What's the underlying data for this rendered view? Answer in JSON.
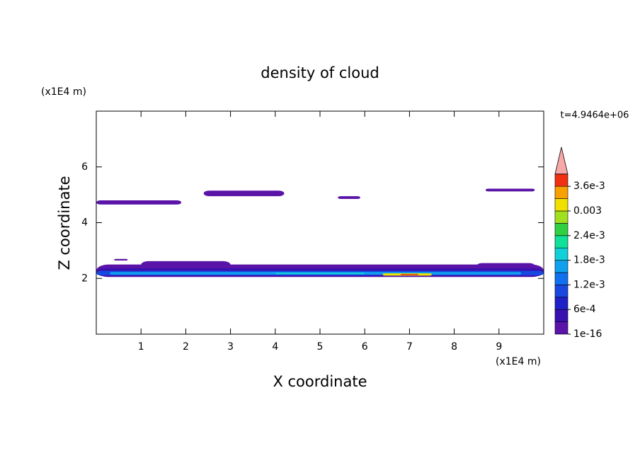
{
  "chart_data": {
    "type": "contour",
    "title": "density of cloud",
    "x_label": "X coordinate",
    "y_label": "Z coordinate",
    "x_unit": "(x1E4 m)",
    "y_unit": "(x1E4 m)",
    "time_label": "t=4.9464e+06",
    "xlim": [
      0,
      10
    ],
    "ylim": [
      0,
      8
    ],
    "xticks": [
      1,
      2,
      3,
      4,
      5,
      6,
      7,
      8,
      9
    ],
    "yticks": [
      2,
      4,
      6
    ],
    "clim": [
      0,
      0.0039
    ],
    "colors": [
      "#5a14a8",
      "#3a10b0",
      "#2020c8",
      "#1848e0",
      "#1070f0",
      "#10a0f0",
      "#10d0d8",
      "#10e098",
      "#30d040",
      "#a0e020",
      "#f0e000",
      "#f8a000",
      "#f03010"
    ],
    "over_color": "#f8a8a8",
    "cticks": [
      {
        "value": 1e-16,
        "label": "1e-16"
      },
      {
        "value": 0.0006,
        "label": "6e-4"
      },
      {
        "value": 0.0012,
        "label": "1.2e-3"
      },
      {
        "value": 0.0018,
        "label": "1.8e-3"
      },
      {
        "value": 0.0024,
        "label": "2.4e-3"
      },
      0.003,
      {
        "value": 0.0036,
        "label": "3.6e-3"
      }
    ],
    "patches": [
      {
        "x": [
          0,
          1.9
        ],
        "z": [
          4.65,
          4.8
        ],
        "value": 0.0001
      },
      {
        "x": [
          2.4,
          4.2
        ],
        "z": [
          4.95,
          5.15
        ],
        "value": 0.0001
      },
      {
        "x": [
          5.4,
          5.9
        ],
        "z": [
          4.85,
          4.95
        ],
        "value": 0.0001
      },
      {
        "x": [
          8.7,
          9.8
        ],
        "z": [
          5.12,
          5.22
        ],
        "value": 0.0001
      },
      {
        "x": [
          0.4,
          0.7
        ],
        "z": [
          2.64,
          2.7
        ],
        "value": 0.0001
      },
      {
        "x": [
          1,
          3
        ],
        "z": [
          2.35,
          2.62
        ],
        "value": 0.0001
      },
      {
        "x": [
          8.5,
          9.8
        ],
        "z": [
          2.35,
          2.55
        ],
        "value": 0.0001
      },
      {
        "x": [
          0,
          10
        ],
        "z": [
          2.05,
          2.5
        ],
        "value": 0.0001
      },
      {
        "x": [
          0,
          10
        ],
        "z": [
          2.08,
          2.36
        ],
        "value": 0.0004
      },
      {
        "x": [
          0,
          10
        ],
        "z": [
          2.11,
          2.27
        ],
        "value": 0.001
      },
      {
        "x": [
          0.3,
          9.5
        ],
        "z": [
          2.14,
          2.23
        ],
        "value": 0.0015
      },
      {
        "x": [
          4,
          6
        ],
        "z": [
          2.15,
          2.2
        ],
        "value": 0.002
      },
      {
        "x": [
          6.4,
          7.5
        ],
        "z": [
          2.1,
          2.18
        ],
        "value": 0.003
      },
      {
        "x": [
          6.8,
          7.2
        ],
        "z": [
          2.12,
          2.16
        ],
        "value": 0.0037
      }
    ]
  }
}
